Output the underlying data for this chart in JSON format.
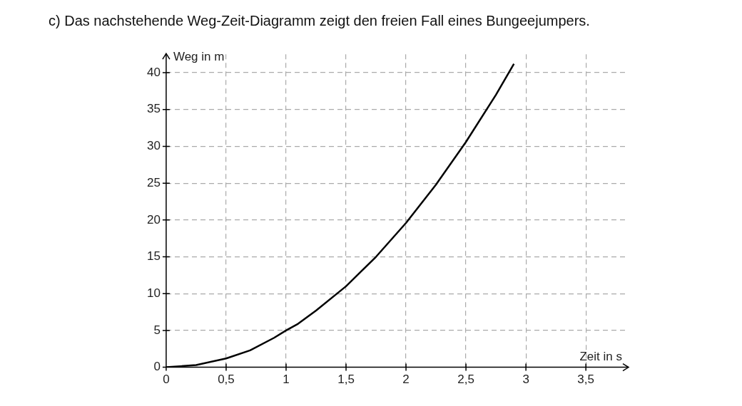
{
  "chart_data": {
    "type": "line",
    "title": "c) Das nachstehende Weg-Zeit-Diagramm zeigt den freien Fall eines Bungeejumpers.",
    "xlabel": "Zeit in s",
    "ylabel": "Weg in m",
    "x": [
      0,
      0.25,
      0.5,
      0.7,
      0.9,
      1,
      1.1,
      1.25,
      1.5,
      1.75,
      2,
      2.25,
      2.5,
      2.75,
      2.9
    ],
    "series": [
      {
        "color": "#000000",
        "values": [
          0,
          0.3,
          1.2,
          2.3,
          4,
          5,
          5.9,
          7.7,
          11,
          15,
          19.6,
          24.8,
          30.6,
          37,
          41.2
        ]
      }
    ],
    "xlim": [
      0,
      3.85
    ],
    "ylim": [
      0,
      42.5
    ],
    "xticks": [
      0,
      {
        "value": 0.5,
        "label": "0,5"
      },
      1,
      {
        "value": 1.5,
        "label": "1,5"
      },
      2,
      {
        "value": 2.5,
        "label": "2,5"
      },
      3,
      {
        "value": 3.5,
        "label": "3,5"
      }
    ],
    "yticks": [
      0,
      5,
      10,
      15,
      20,
      25,
      30,
      35,
      40
    ],
    "grid": true,
    "legend": false,
    "marker": "none",
    "line_style": "solid"
  }
}
